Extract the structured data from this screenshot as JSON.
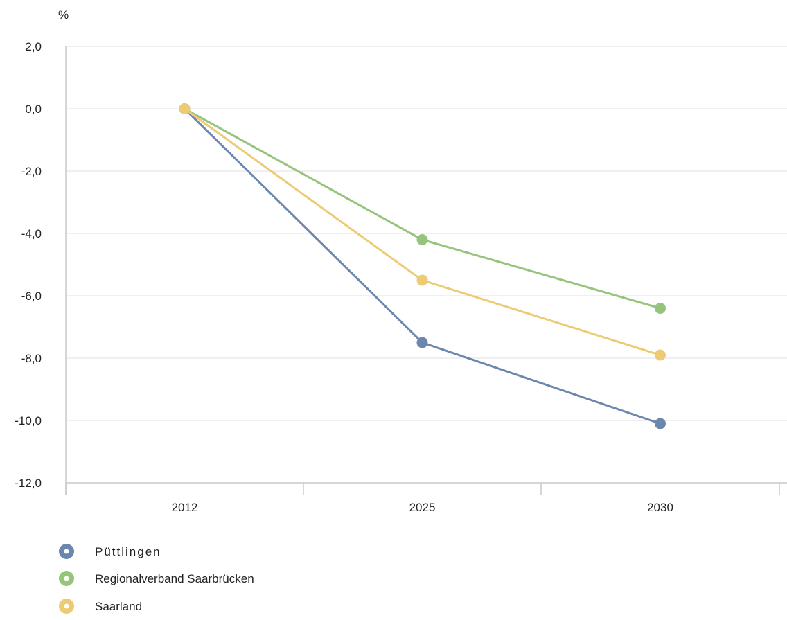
{
  "chart_data": {
    "type": "line",
    "unit_label": "%",
    "categories": [
      "2012",
      "2025",
      "2030"
    ],
    "ylim": [
      -12,
      2
    ],
    "y_ticks": [
      2,
      0,
      -2,
      -4,
      -6,
      -8,
      -10,
      -12
    ],
    "y_tick_labels": [
      "2,0",
      "0,0",
      "-2,0",
      "-4,0",
      "-6,0",
      "-8,0",
      "-10,0",
      "-12,0"
    ],
    "grid": true,
    "legend_position": "bottom-left",
    "series": [
      {
        "name": "Püttlingen",
        "color": "#6b87ad",
        "values": [
          0,
          -7.5,
          -10.1
        ]
      },
      {
        "name": "Regionalverband Saarbrücken",
        "color": "#97c47c",
        "values": [
          0,
          -4.2,
          -6.4
        ]
      },
      {
        "name": "Saarland",
        "color": "#eccb74",
        "values": [
          0,
          -5.5,
          -7.9
        ]
      }
    ]
  }
}
